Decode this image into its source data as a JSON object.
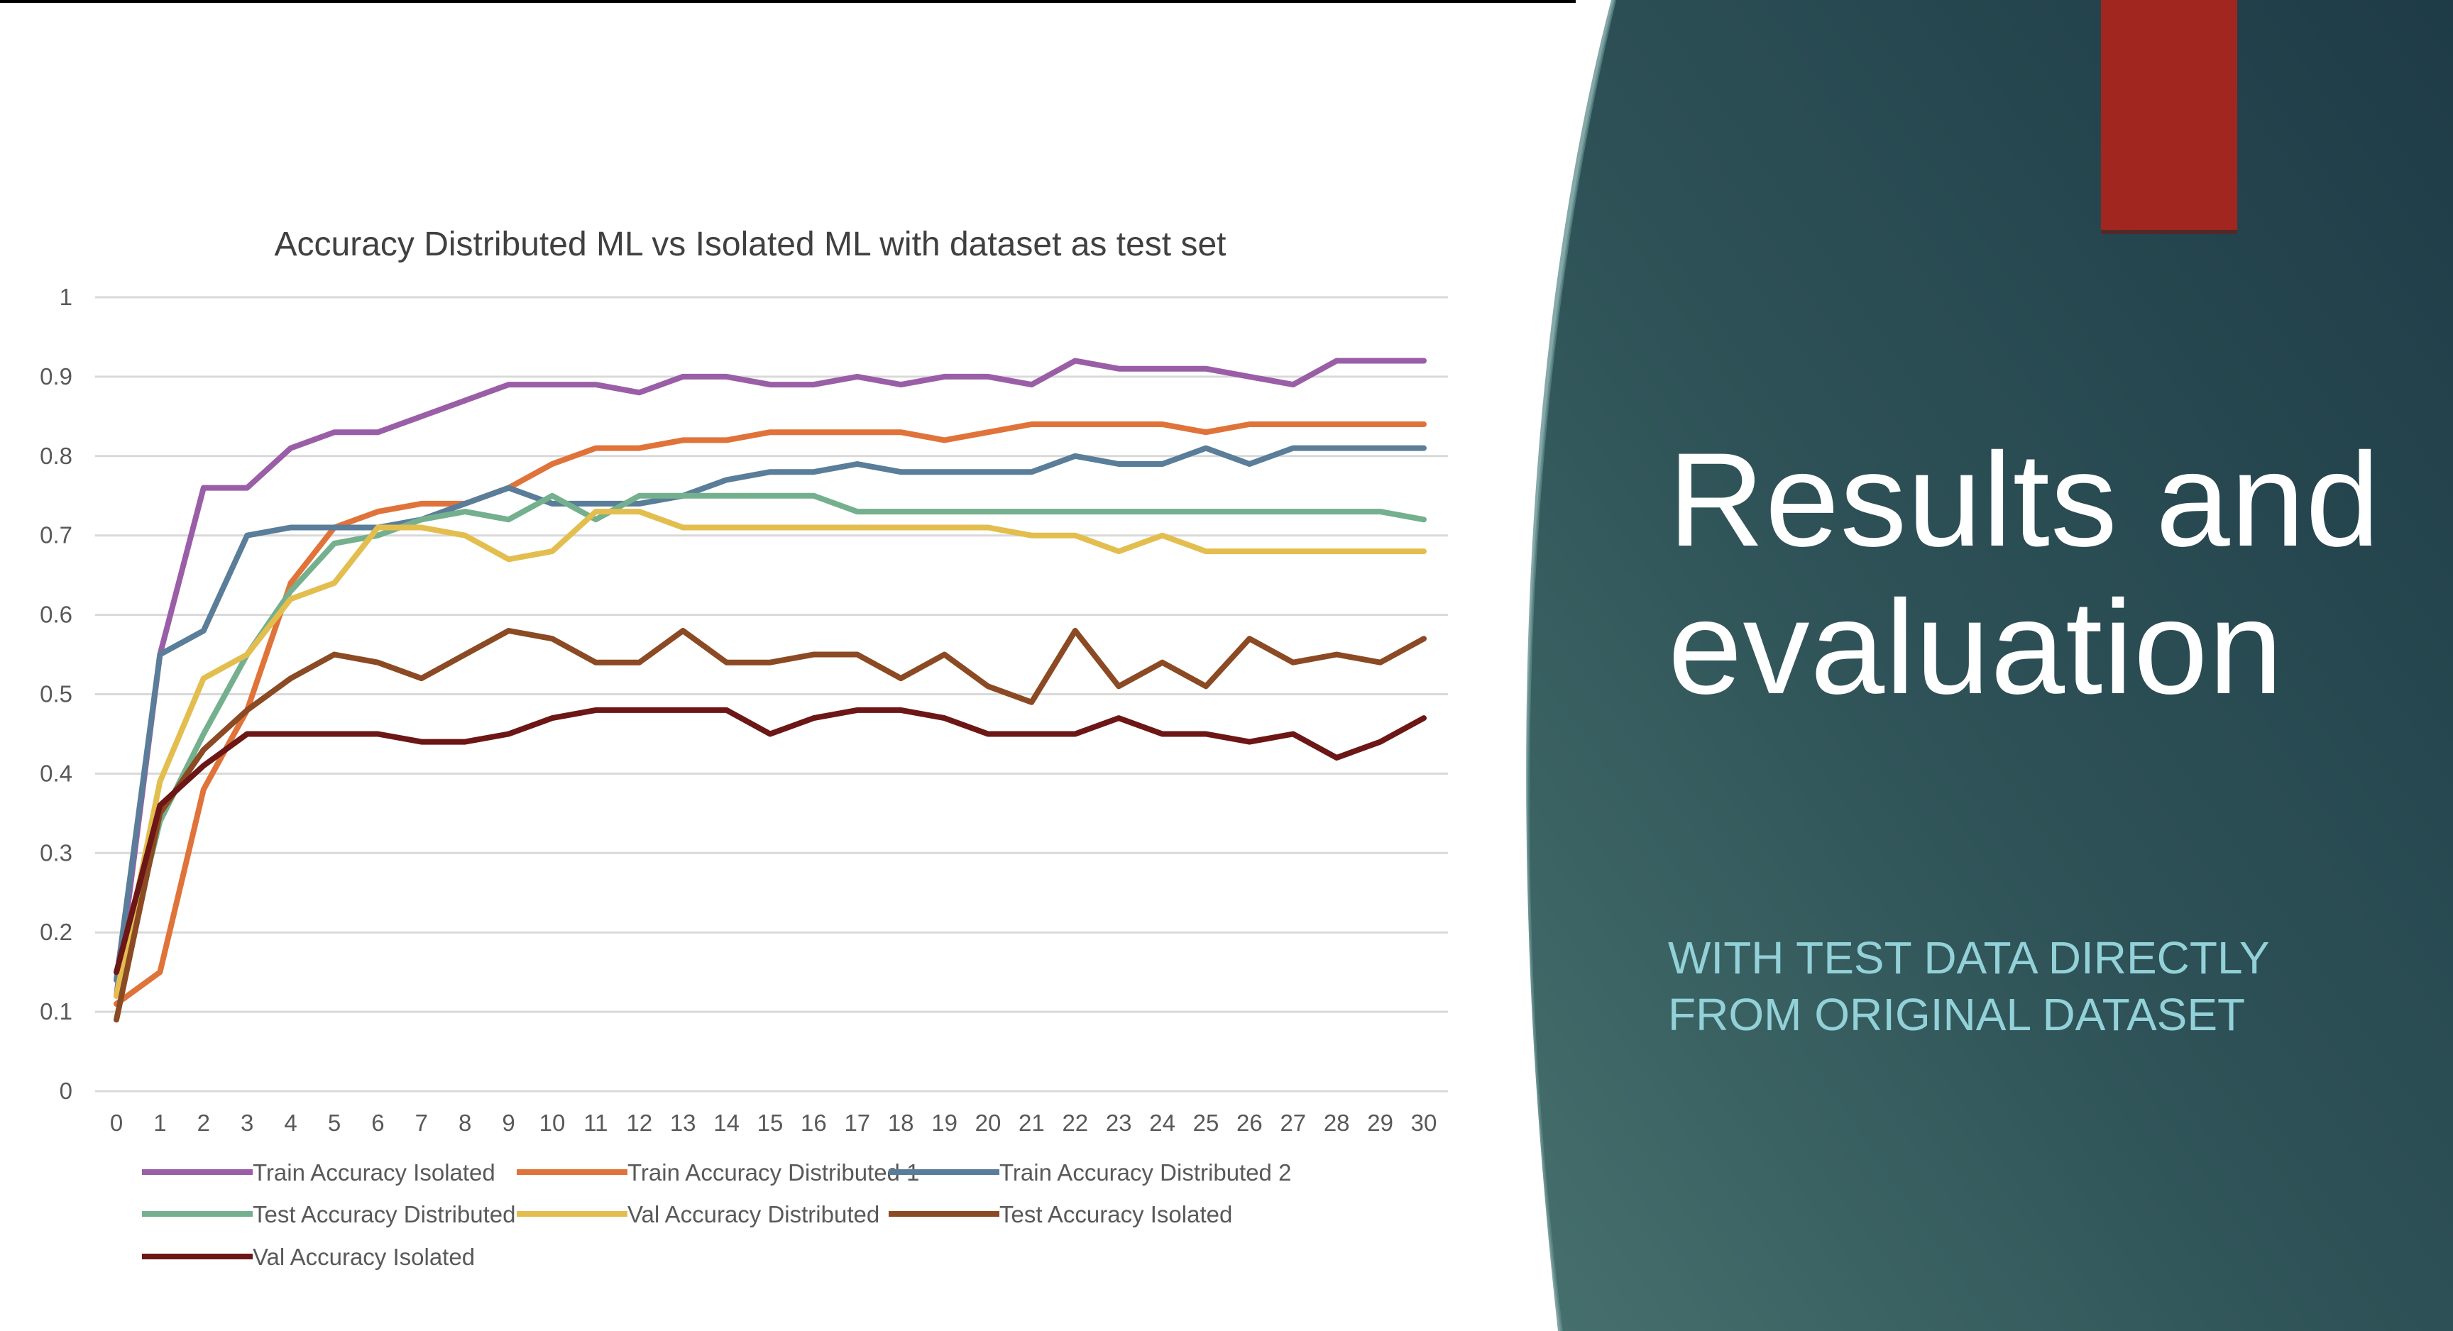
{
  "slide": {
    "title": "Results and evaluation",
    "subtitle": "WITH TEST DATA DIRECTLY FROM ORIGINAL DATASET",
    "colors": {
      "panel_dark": "#1f3c46",
      "panel_light": "#46706d",
      "accent_bar": "#a1261f",
      "title": "#ffffff",
      "subtitle": "#93d1d9"
    }
  },
  "chart_data": {
    "type": "line",
    "title": "Accuracy Distributed ML vs Isolated ML with dataset as test set",
    "xlabel": "",
    "ylabel": "",
    "x": [
      0,
      1,
      2,
      3,
      4,
      5,
      6,
      7,
      8,
      9,
      10,
      11,
      12,
      13,
      14,
      15,
      16,
      17,
      18,
      19,
      20,
      21,
      22,
      23,
      24,
      25,
      26,
      27,
      28,
      29,
      30
    ],
    "ylim": [
      0,
      1
    ],
    "yticks": [
      0,
      0.1,
      0.2,
      0.3,
      0.4,
      0.5,
      0.6,
      0.7,
      0.8,
      0.9,
      1
    ],
    "ytick_labels": [
      "0",
      "0.1",
      "0.2",
      "0.3",
      "0.4",
      "0.5",
      "0.6",
      "0.7",
      "0.8",
      "0.9",
      "1"
    ],
    "grid": true,
    "legend_position": "bottom",
    "series": [
      {
        "name": "Train Accuracy Isolated",
        "color": "#9a5ea7",
        "values": [
          0.12,
          0.55,
          0.76,
          0.76,
          0.81,
          0.83,
          0.83,
          0.85,
          0.87,
          0.89,
          0.89,
          0.89,
          0.88,
          0.9,
          0.9,
          0.89,
          0.89,
          0.9,
          0.89,
          0.9,
          0.9,
          0.89,
          0.92,
          0.91,
          0.91,
          0.91,
          0.9,
          0.89,
          0.92,
          0.92,
          0.92
        ]
      },
      {
        "name": "Train Accuracy Distributed 1",
        "color": "#e0733a",
        "values": [
          0.11,
          0.15,
          0.38,
          0.48,
          0.64,
          0.71,
          0.73,
          0.74,
          0.74,
          0.76,
          0.79,
          0.81,
          0.81,
          0.82,
          0.82,
          0.83,
          0.83,
          0.83,
          0.83,
          0.82,
          0.83,
          0.84,
          0.84,
          0.84,
          0.84,
          0.83,
          0.84,
          0.84,
          0.84,
          0.84,
          0.84
        ]
      },
      {
        "name": "Train Accuracy Distributed 2",
        "color": "#5a7d99",
        "values": [
          0.14,
          0.55,
          0.58,
          0.7,
          0.71,
          0.71,
          0.71,
          0.72,
          0.74,
          0.76,
          0.74,
          0.74,
          0.74,
          0.75,
          0.77,
          0.78,
          0.78,
          0.79,
          0.78,
          0.78,
          0.78,
          0.78,
          0.8,
          0.79,
          0.79,
          0.81,
          0.79,
          0.81,
          0.81,
          0.81,
          0.81
        ]
      },
      {
        "name": "Test Accuracy Distributed",
        "color": "#74b08e",
        "values": [
          0.12,
          0.34,
          0.45,
          0.55,
          0.63,
          0.69,
          0.7,
          0.72,
          0.73,
          0.72,
          0.75,
          0.72,
          0.75,
          0.75,
          0.75,
          0.75,
          0.75,
          0.73,
          0.73,
          0.73,
          0.73,
          0.73,
          0.73,
          0.73,
          0.73,
          0.73,
          0.73,
          0.73,
          0.73,
          0.73,
          0.72
        ]
      },
      {
        "name": "Val Accuracy Distributed",
        "color": "#e3be4f",
        "values": [
          0.12,
          0.39,
          0.52,
          0.55,
          0.62,
          0.64,
          0.71,
          0.71,
          0.7,
          0.67,
          0.68,
          0.73,
          0.73,
          0.71,
          0.71,
          0.71,
          0.71,
          0.71,
          0.71,
          0.71,
          0.71,
          0.7,
          0.7,
          0.68,
          0.7,
          0.68,
          0.68,
          0.68,
          0.68,
          0.68,
          0.68
        ]
      },
      {
        "name": "Test Accuracy Isolated",
        "color": "#8b4a23",
        "values": [
          0.09,
          0.35,
          0.43,
          0.48,
          0.52,
          0.55,
          0.54,
          0.52,
          0.55,
          0.58,
          0.57,
          0.54,
          0.54,
          0.58,
          0.54,
          0.54,
          0.55,
          0.55,
          0.52,
          0.55,
          0.51,
          0.49,
          0.58,
          0.51,
          0.54,
          0.51,
          0.57,
          0.54,
          0.55,
          0.54,
          0.57
        ]
      },
      {
        "name": "Val Accuracy Isolated",
        "color": "#6c1616",
        "values": [
          0.15,
          0.36,
          0.41,
          0.45,
          0.45,
          0.45,
          0.45,
          0.44,
          0.44,
          0.45,
          0.47,
          0.48,
          0.48,
          0.48,
          0.48,
          0.45,
          0.47,
          0.48,
          0.48,
          0.47,
          0.45,
          0.45,
          0.45,
          0.47,
          0.45,
          0.45,
          0.44,
          0.45,
          0.42,
          0.44,
          0.47
        ]
      }
    ]
  }
}
